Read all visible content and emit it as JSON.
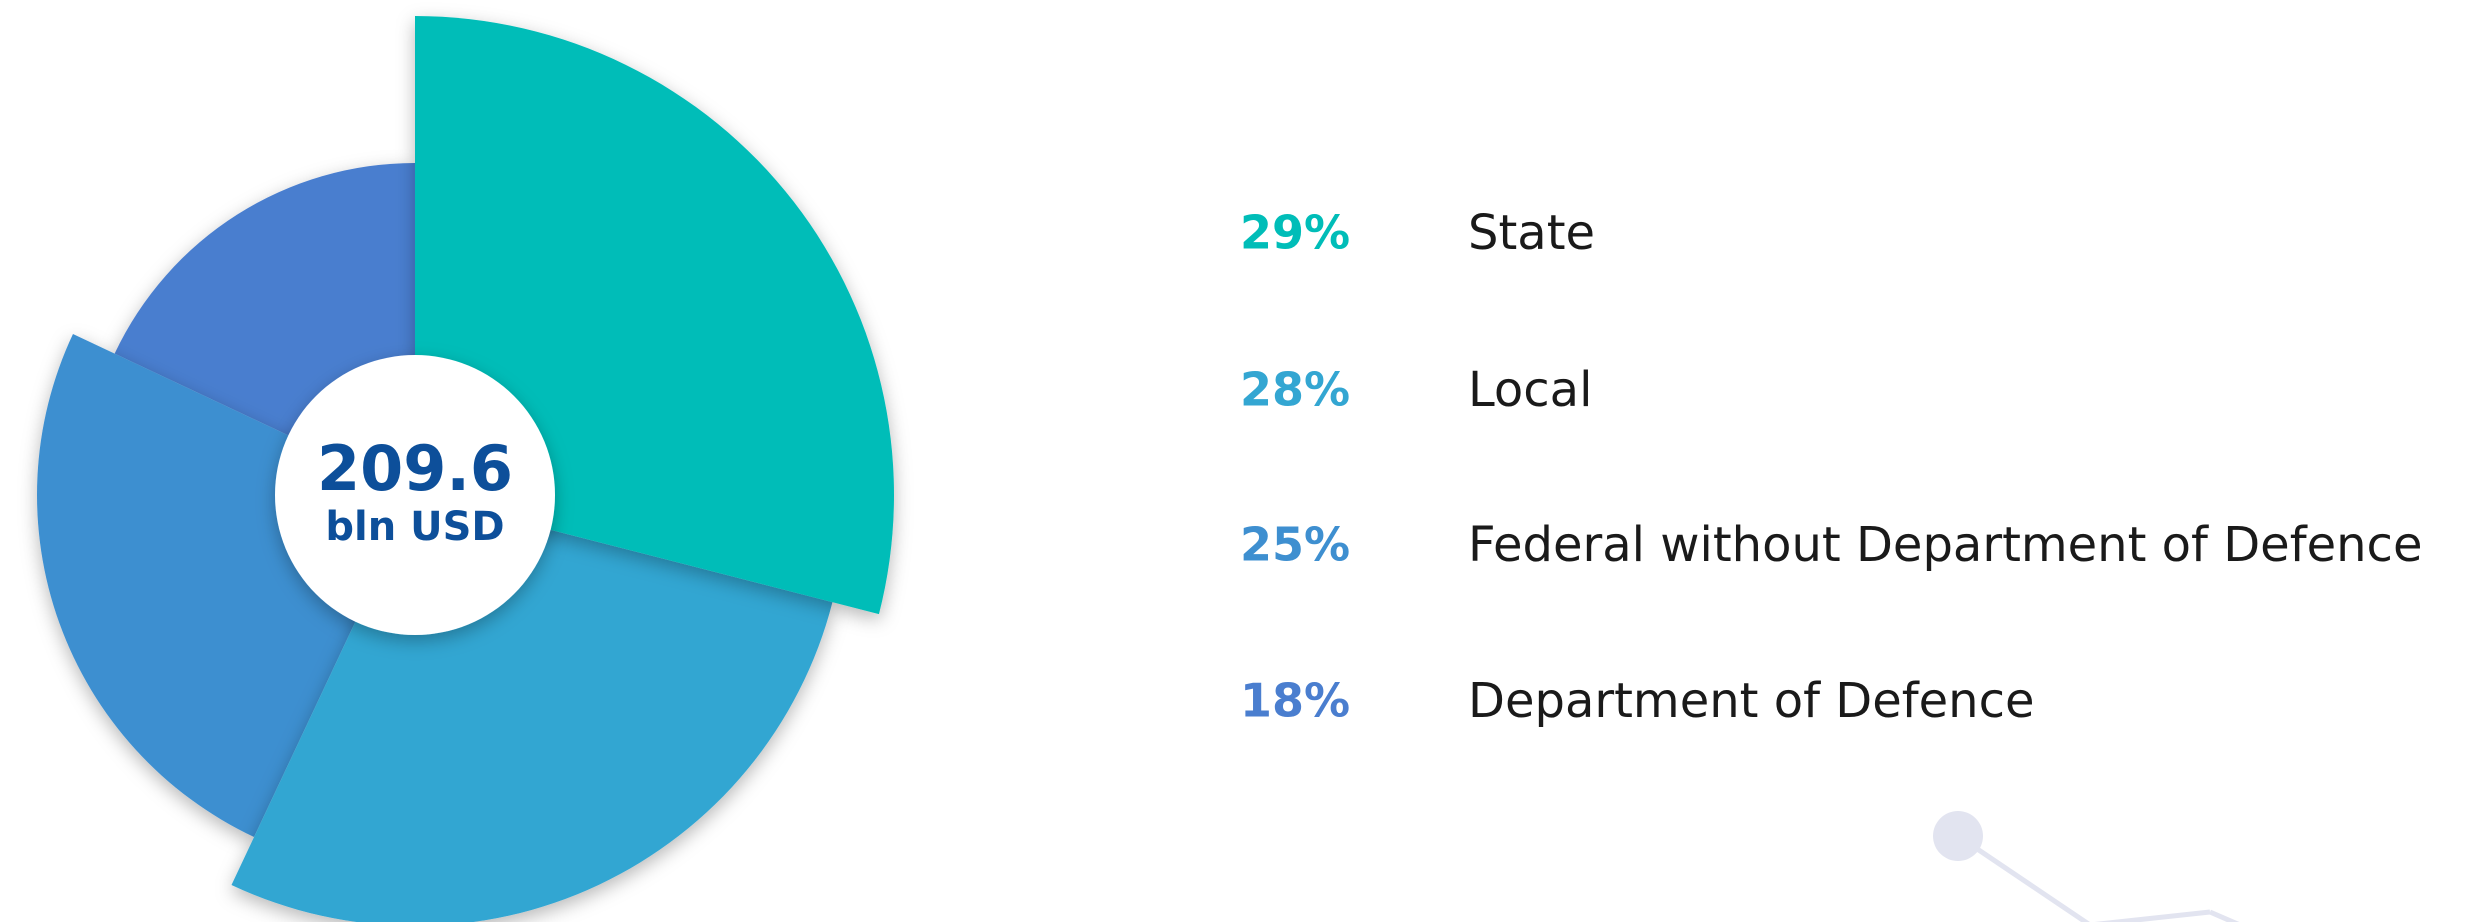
{
  "chart_data": {
    "type": "pie",
    "center_text": [
      "209.6",
      "bln USD"
    ],
    "categories": [
      "State",
      "Local",
      "Federal without Department of Defence",
      "Department of Defence"
    ],
    "values": [
      29,
      28,
      25,
      18
    ],
    "value_labels": [
      "29%",
      "28%",
      "25%",
      "18%"
    ],
    "colors": [
      "#00bdb8",
      "#33a6d2",
      "#3e8fd0",
      "#4a7ecf"
    ]
  }
}
